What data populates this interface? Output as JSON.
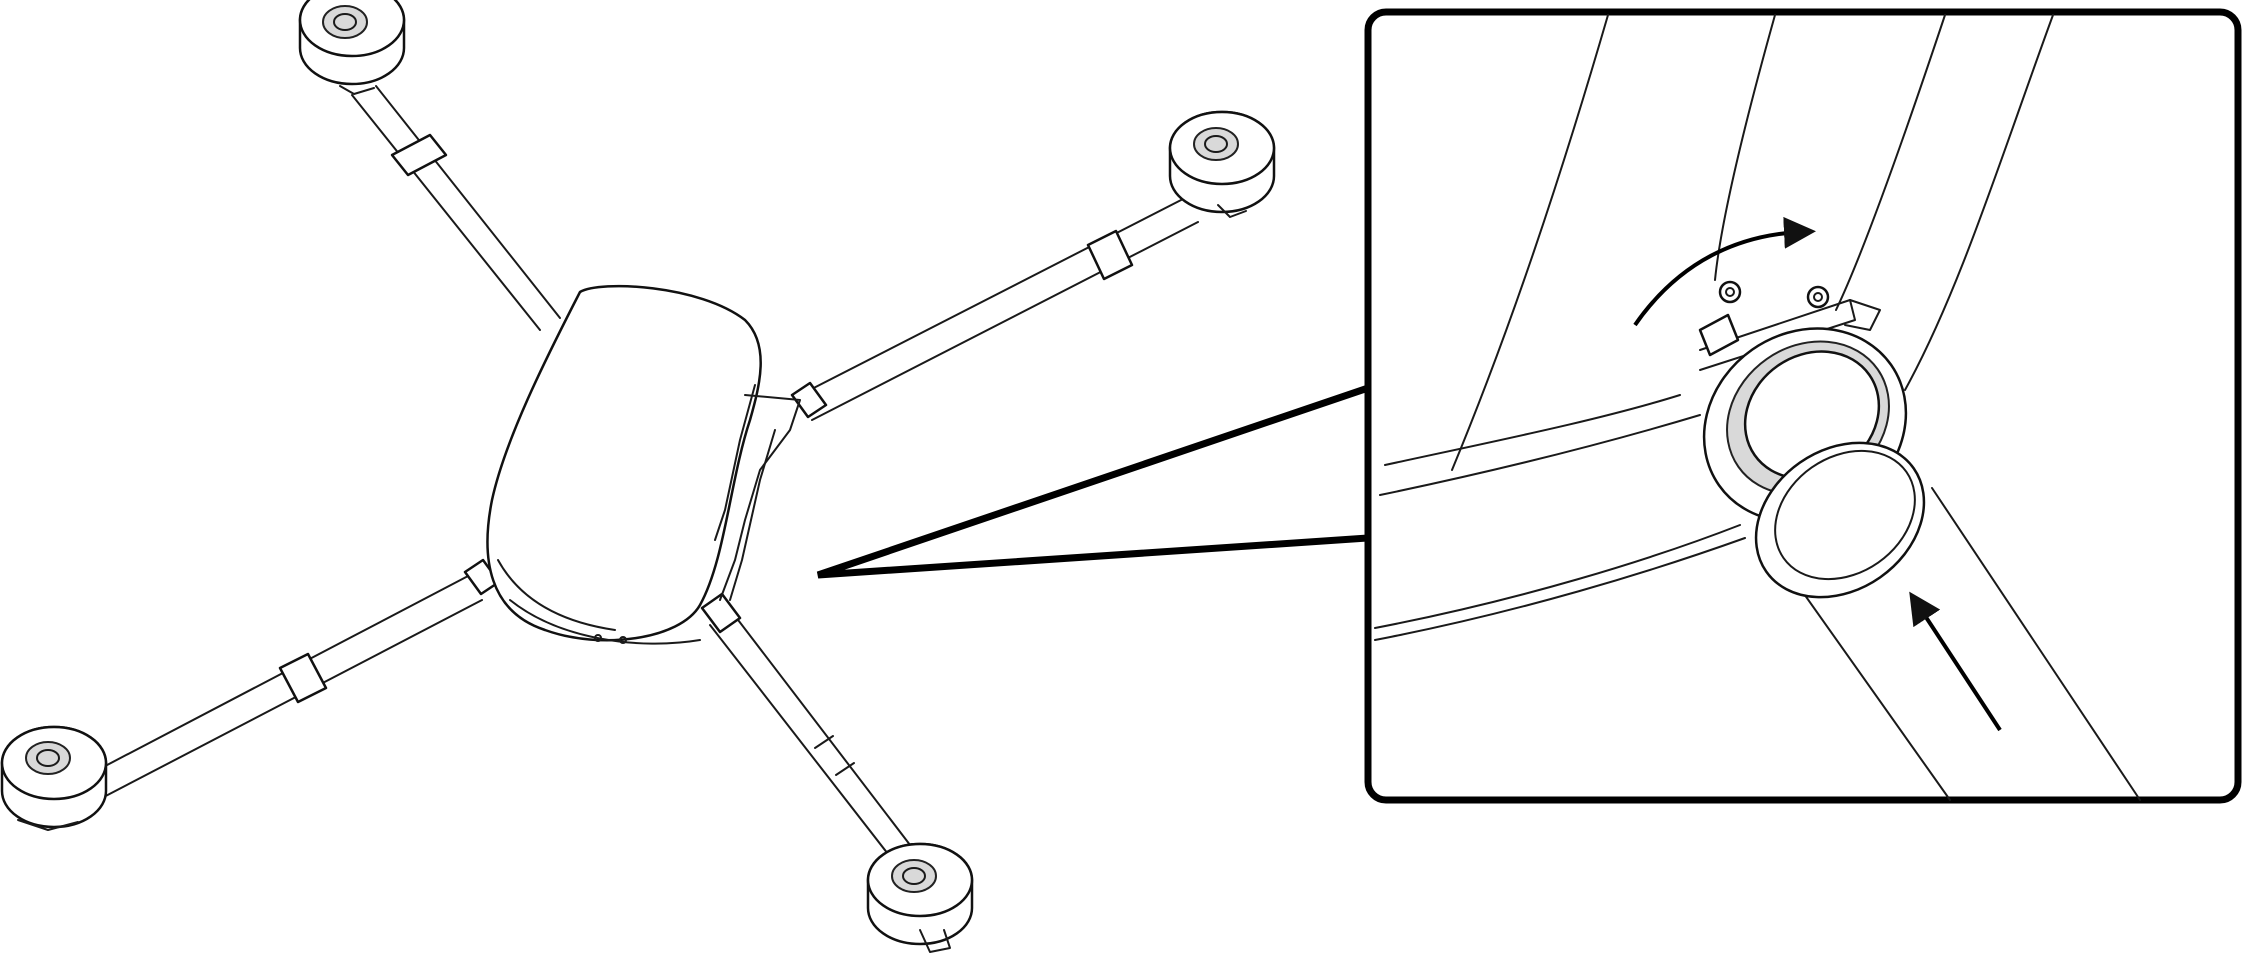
{
  "figure": {
    "subject": "quadcopter-arm-installation",
    "colors": {
      "line": "#111111",
      "background": "#ffffff",
      "detail_frame": "#000000",
      "collar_shade": "#d9d9d9"
    },
    "arrows": {
      "detail_rotate": "arc-arrow-clockwise",
      "detail_insert": "straight-arrow-up-left"
    }
  }
}
